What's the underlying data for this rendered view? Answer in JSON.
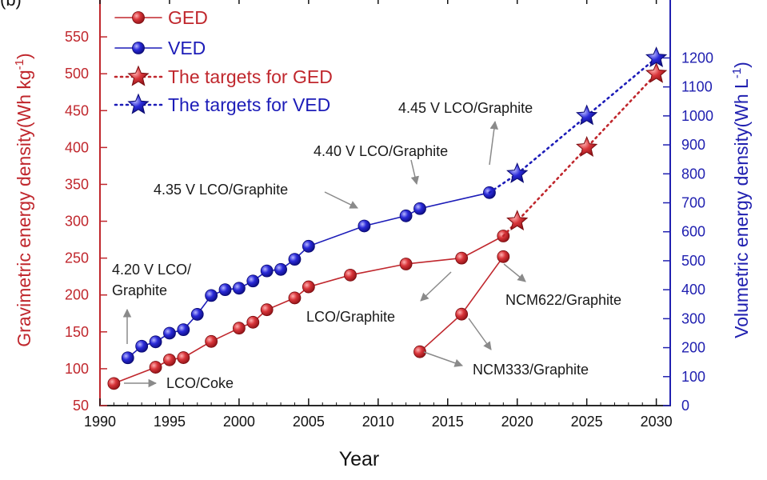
{
  "chart_data": {
    "type": "line",
    "panel_label": "(b)",
    "xlabel": "Year",
    "ylabel_left": "Gravimetric energy density(Wh kg",
    "ylabel_left_unit_sup": "-1",
    "ylabel_left_close": ")",
    "ylabel_right": "Volumetric energy density(Wh L",
    "ylabel_right_unit_sup": "-1",
    "ylabel_right_close": ")",
    "xlim": [
      1990,
      2031
    ],
    "ylim_left": [
      50,
      600
    ],
    "ylim_right": [
      0,
      1400
    ],
    "x_ticks": [
      1990,
      1995,
      2000,
      2005,
      2010,
      2015,
      2020,
      2025,
      2030
    ],
    "y_left_ticks": [
      50,
      100,
      150,
      200,
      250,
      300,
      350,
      400,
      450,
      500,
      550
    ],
    "y_right_ticks": [
      0,
      100,
      200,
      300,
      400,
      500,
      600,
      700,
      800,
      900,
      1000,
      1100,
      1200
    ],
    "colors": {
      "ged": "#c0272d",
      "ved": "#1c1cb8",
      "ged_axis": "#c0272d",
      "ved_axis": "#2020b0",
      "text": "#111111"
    },
    "legend": [
      {
        "label": "GED",
        "marker": "circle",
        "series": "ged"
      },
      {
        "label": "VED",
        "marker": "circle",
        "series": "ved"
      },
      {
        "label": "The targets for GED",
        "marker": "star",
        "series": "ged"
      },
      {
        "label": "The targets for VED",
        "marker": "star",
        "series": "ved"
      }
    ],
    "series": [
      {
        "name": "GED",
        "axis": "left",
        "x": [
          1991,
          1994,
          1995,
          1996,
          1998,
          2000,
          2001,
          2002,
          2004,
          2005,
          2008,
          2012,
          2016,
          2019
        ],
        "values": [
          80,
          102,
          112,
          115,
          137,
          155,
          163,
          180,
          196,
          211,
          227,
          242,
          250,
          280
        ]
      },
      {
        "name": "GED (NCM)",
        "axis": "left",
        "x": [
          2013,
          2016,
          2019
        ],
        "values": [
          123,
          174,
          252
        ]
      },
      {
        "name": "VED",
        "axis": "right",
        "x": [
          1992,
          1993,
          1994,
          1995,
          1996,
          1997,
          1998,
          1999,
          2000,
          2001,
          2002,
          2003,
          2004,
          2005,
          2009,
          2012,
          2013,
          2018
        ],
        "values": [
          165,
          205,
          220,
          250,
          262,
          315,
          380,
          400,
          405,
          430,
          465,
          470,
          505,
          550,
          620,
          655,
          680,
          735
        ]
      },
      {
        "name": "The targets for GED",
        "axis": "left",
        "x": [
          2020,
          2025,
          2030
        ],
        "values": [
          300,
          400,
          500
        ],
        "connect_from": {
          "x": 2019,
          "value": 280
        }
      },
      {
        "name": "The targets for VED",
        "axis": "right",
        "x": [
          2020,
          2025,
          2030
        ],
        "values": [
          800,
          1000,
          1200
        ],
        "connect_from": {
          "x": 2018,
          "value": 735
        }
      }
    ],
    "annotations": [
      {
        "text": "4.20 V LCO/",
        "line2": "Graphite"
      },
      {
        "text": "4.35 V LCO/Graphite"
      },
      {
        "text": "4.40 V LCO/Graphite"
      },
      {
        "text": "4.45 V LCO/Graphite"
      },
      {
        "text": "LCO/Coke"
      },
      {
        "text": "LCO/Graphite"
      },
      {
        "text": "NCM622/Graphite"
      },
      {
        "text": "NCM333/Graphite"
      }
    ]
  }
}
